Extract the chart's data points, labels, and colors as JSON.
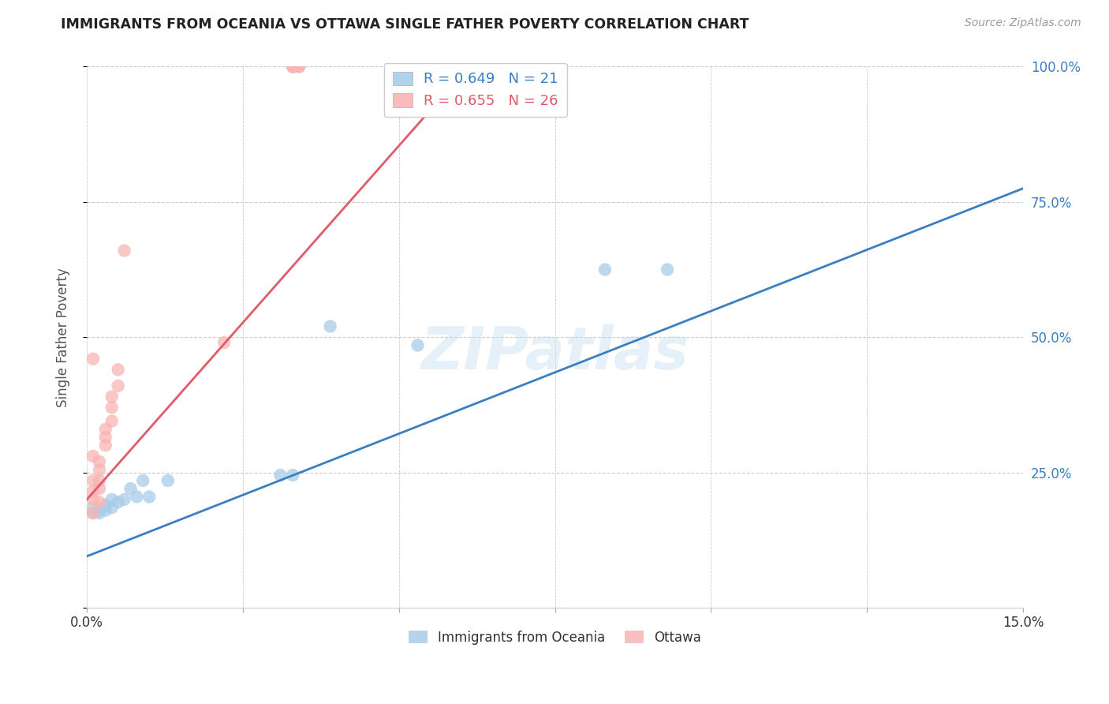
{
  "title": "IMMIGRANTS FROM OCEANIA VS OTTAWA SINGLE FATHER POVERTY CORRELATION CHART",
  "source": "Source: ZipAtlas.com",
  "ylabel": "Single Father Poverty",
  "legend_blue_label": "Immigrants from Oceania",
  "legend_pink_label": "Ottawa",
  "legend_blue_R": "R = 0.649",
  "legend_blue_N": "N = 21",
  "legend_pink_R": "R = 0.655",
  "legend_pink_N": "N = 26",
  "blue_color": "#a8cde8",
  "pink_color": "#f9b4b4",
  "blue_line_color": "#3a7fc1",
  "pink_line_color": "#e05a6a",
  "blue_scatter": [
    [
      0.001,
      0.185
    ],
    [
      0.001,
      0.175
    ],
    [
      0.002,
      0.175
    ],
    [
      0.002,
      0.18
    ],
    [
      0.003,
      0.18
    ],
    [
      0.003,
      0.19
    ],
    [
      0.004,
      0.185
    ],
    [
      0.004,
      0.2
    ],
    [
      0.005,
      0.195
    ],
    [
      0.006,
      0.2
    ],
    [
      0.007,
      0.22
    ],
    [
      0.008,
      0.205
    ],
    [
      0.009,
      0.235
    ],
    [
      0.01,
      0.205
    ],
    [
      0.013,
      0.235
    ],
    [
      0.031,
      0.245
    ],
    [
      0.033,
      0.245
    ],
    [
      0.039,
      0.52
    ],
    [
      0.053,
      0.485
    ],
    [
      0.083,
      0.625
    ],
    [
      0.093,
      0.625
    ]
  ],
  "pink_scatter": [
    [
      0.001,
      0.175
    ],
    [
      0.001,
      0.2
    ],
    [
      0.001,
      0.215
    ],
    [
      0.001,
      0.235
    ],
    [
      0.001,
      0.28
    ],
    [
      0.002,
      0.195
    ],
    [
      0.002,
      0.22
    ],
    [
      0.002,
      0.235
    ],
    [
      0.002,
      0.255
    ],
    [
      0.002,
      0.27
    ],
    [
      0.003,
      0.3
    ],
    [
      0.003,
      0.315
    ],
    [
      0.003,
      0.33
    ],
    [
      0.004,
      0.345
    ],
    [
      0.004,
      0.37
    ],
    [
      0.004,
      0.39
    ],
    [
      0.005,
      0.41
    ],
    [
      0.005,
      0.44
    ],
    [
      0.006,
      0.66
    ],
    [
      0.033,
      1.0
    ],
    [
      0.033,
      1.0
    ],
    [
      0.033,
      1.0
    ],
    [
      0.034,
      1.0
    ],
    [
      0.034,
      1.0
    ],
    [
      0.001,
      0.46
    ],
    [
      0.022,
      0.49
    ]
  ],
  "blue_line": [
    0.0,
    0.15,
    0.095,
    0.775
  ],
  "pink_line": [
    0.0,
    0.065,
    0.2,
    1.05
  ],
  "xlim": [
    0.0,
    0.15
  ],
  "ylim": [
    0.0,
    1.0
  ],
  "xticks": [
    0.0,
    0.025,
    0.05,
    0.075,
    0.1,
    0.125,
    0.15
  ],
  "xtick_labels": [
    "0.0%",
    "",
    "",
    "",
    "",
    "",
    "15.0%"
  ],
  "yticks": [
    0.0,
    0.25,
    0.5,
    0.75,
    1.0
  ],
  "ytick_labels": [
    "",
    "25.0%",
    "50.0%",
    "75.0%",
    "100.0%"
  ],
  "watermark_text": "ZIPatlas",
  "background_color": "#ffffff",
  "grid_color": "#cccccc"
}
